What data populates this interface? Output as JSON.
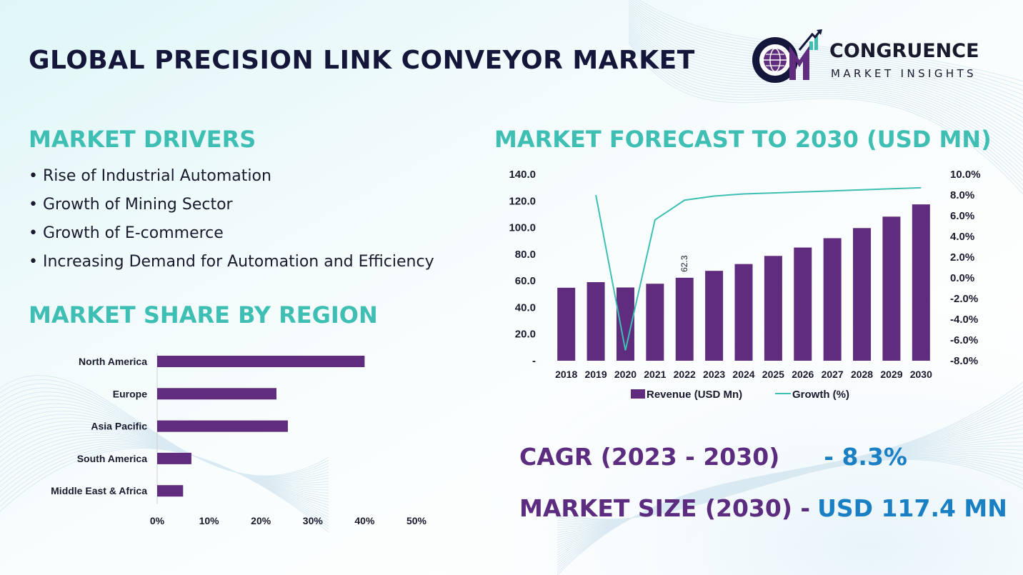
{
  "page": {
    "title": "GLOBAL PRECISION LINK CONVEYOR MARKET",
    "colors": {
      "navy": "#14163a",
      "teal": "#3fbfb3",
      "purple": "#5f2c7e",
      "blue": "#1b7fc4"
    }
  },
  "logo": {
    "name": "CONGRUENCE",
    "subtitle": "MARKET INSIGHTS",
    "icon": "cm-globe-logo-icon"
  },
  "drivers": {
    "heading": "MARKET DRIVERS",
    "items": [
      "Rise of Industrial Automation",
      "Growth of Mining Sector",
      "Growth of E-commerce",
      "Increasing Demand for Automation and Efficiency"
    ]
  },
  "region": {
    "heading": "MARKET SHARE BY REGION"
  },
  "forecast": {
    "heading": "MARKET FORECAST TO 2030 (USD MN)"
  },
  "kpis": {
    "cagr_label": "CAGR (2023 - 2030)",
    "cagr_value": "- 8.3%",
    "size_label": "MARKET SIZE (2030) -",
    "size_value": "USD 117.4 MN"
  },
  "chart_data": [
    {
      "type": "bar",
      "orientation": "horizontal",
      "title": "",
      "categories": [
        "North America",
        "Europe",
        "Asia Pacific",
        "South America",
        "Middle East & Africa"
      ],
      "values": [
        40,
        23,
        25.2,
        6.6,
        5
      ],
      "xlim": [
        0,
        50
      ],
      "x_ticks": [
        "0%",
        "10%",
        "20%",
        "30%",
        "40%",
        "50%"
      ],
      "grid": false,
      "color": "#5f2c7e"
    },
    {
      "type": "bar+line",
      "title": "",
      "categories": [
        "2018",
        "2019",
        "2020",
        "2021",
        "2022",
        "2023",
        "2024",
        "2025",
        "2026",
        "2027",
        "2028",
        "2029",
        "2030"
      ],
      "series": [
        {
          "name": "Revenue (USD Mn)",
          "type": "bar",
          "axis": "left",
          "color": "#5f2c7e",
          "values": [
            54.8,
            59.0,
            55.0,
            57.8,
            62.3,
            67.5,
            72.6,
            78.7,
            85.0,
            92.0,
            99.6,
            108.2,
            117.4
          ]
        },
        {
          "name": "Growth (%)",
          "type": "line",
          "axis": "right",
          "color": "#3fbfb3",
          "values": [
            null,
            8.0,
            -7.0,
            5.6,
            7.5,
            7.9,
            8.1,
            8.2,
            8.3,
            8.4,
            8.5,
            8.6,
            8.7
          ]
        }
      ],
      "data_labels": [
        {
          "category": "2022",
          "text": "62.3"
        }
      ],
      "ylim_left": [
        0,
        140
      ],
      "y_ticks_left": [
        "-",
        "20.0",
        "40.0",
        "60.0",
        "80.0",
        "100.0",
        "120.0",
        "140.0"
      ],
      "ylim_right": [
        -8,
        10
      ],
      "y_ticks_right": [
        "-8.0%",
        "-6.0%",
        "-4.0%",
        "-2.0%",
        "0.0%",
        "2.0%",
        "4.0%",
        "6.0%",
        "8.0%",
        "10.0%"
      ],
      "legend_position": "bottom",
      "grid": false
    }
  ]
}
